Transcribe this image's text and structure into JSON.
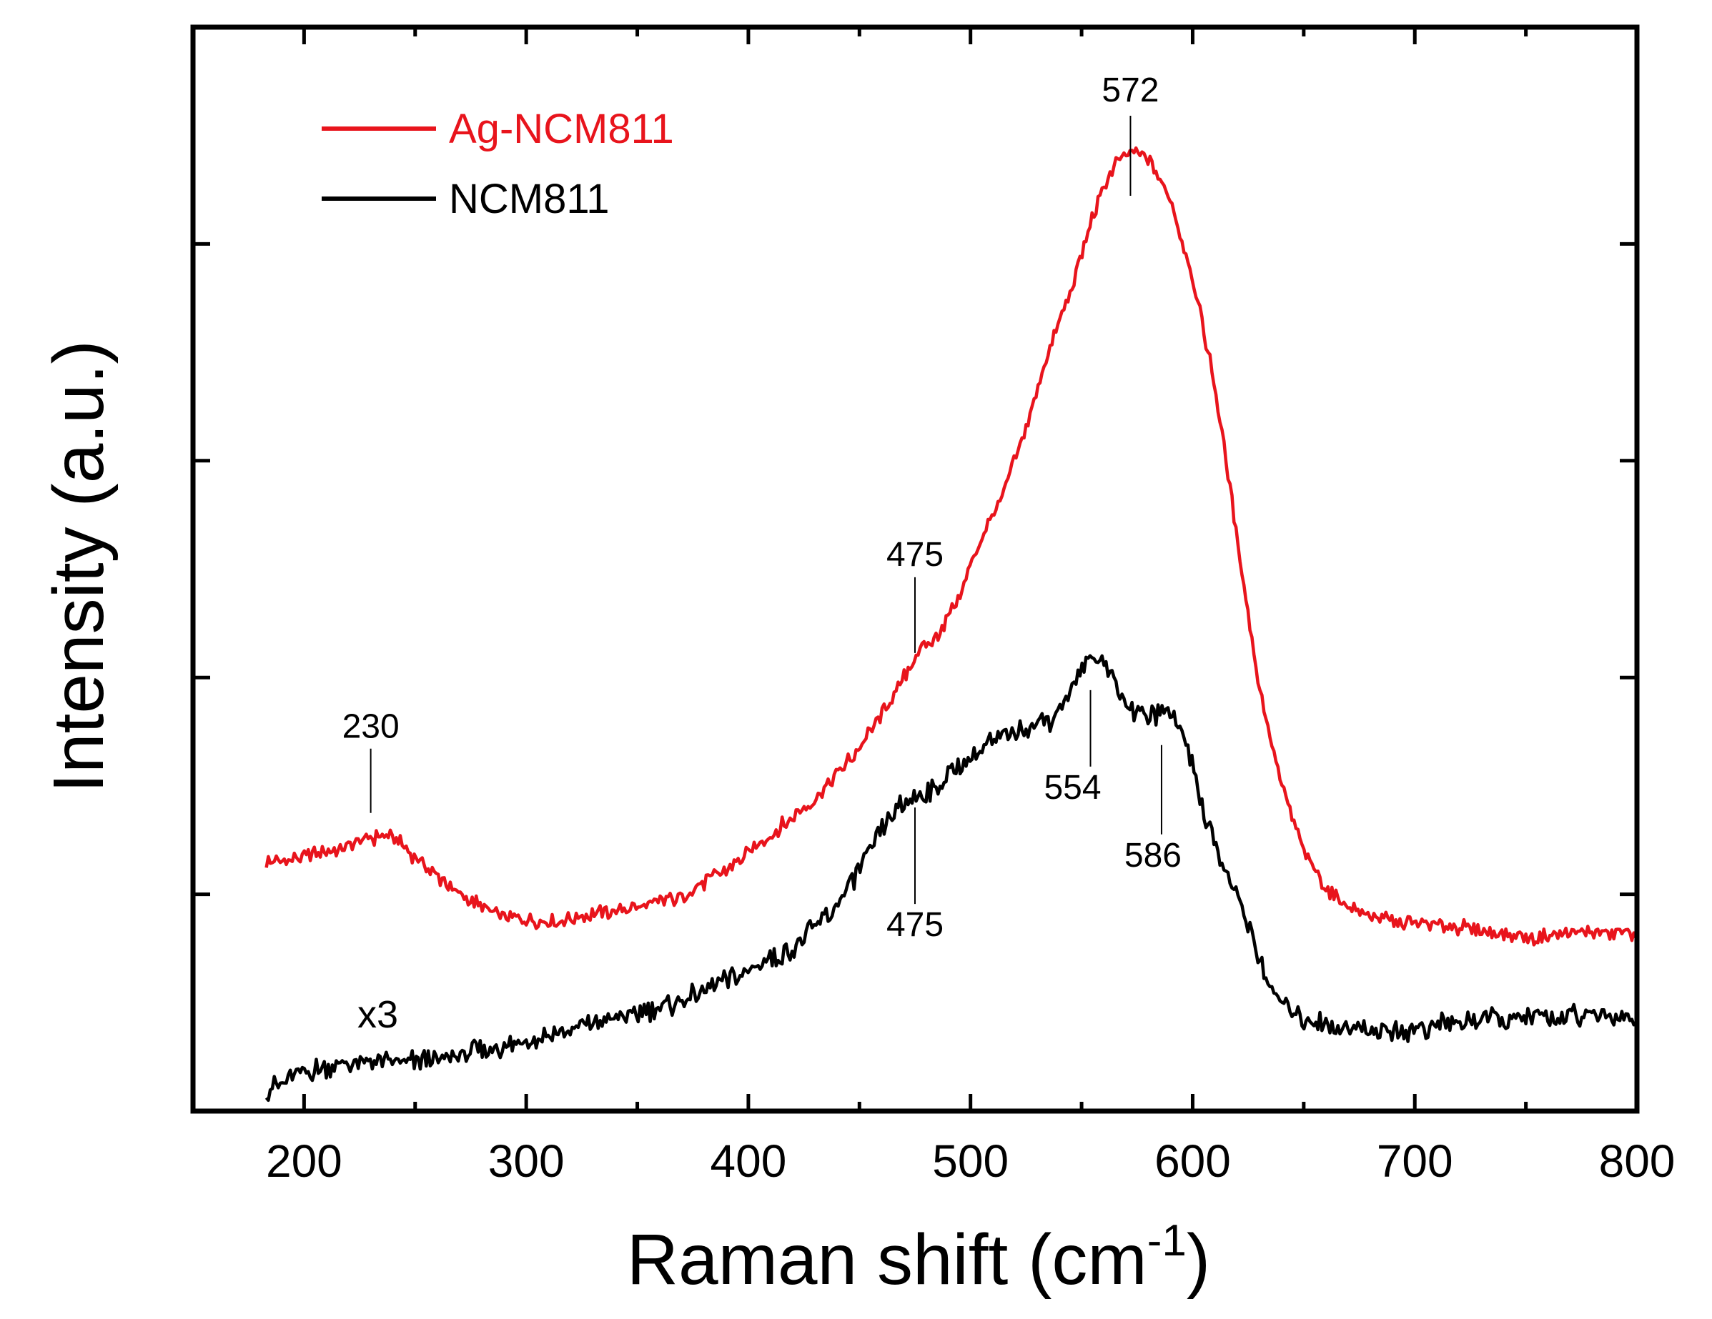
{
  "chart_data": {
    "type": "line",
    "title": "",
    "xlabel": "Raman shift (cm",
    "xlabel_superscript": "-1",
    "xlabel_close": ")",
    "ylabel": "Intensity (a.u.)",
    "xlim": [
      150,
      800
    ],
    "ylim": [
      0,
      100
    ],
    "x_ticks": [
      200,
      300,
      400,
      500,
      600,
      700,
      800
    ],
    "y_ticks_show_labels": false,
    "grid": false,
    "legend_position": "top-left",
    "series": [
      {
        "name": "Ag-NCM811",
        "color": "#e8141c",
        "points": [
          [
            183,
            23
          ],
          [
            200,
            23.5
          ],
          [
            215,
            24.2
          ],
          [
            230,
            25.2
          ],
          [
            240,
            25.3
          ],
          [
            255,
            22.5
          ],
          [
            270,
            20
          ],
          [
            290,
            17.8
          ],
          [
            310,
            17.3
          ],
          [
            330,
            18.2
          ],
          [
            350,
            18.8
          ],
          [
            370,
            19.8
          ],
          [
            390,
            22.3
          ],
          [
            410,
            25.5
          ],
          [
            430,
            28.8
          ],
          [
            450,
            33.5
          ],
          [
            465,
            38
          ],
          [
            475,
            42
          ],
          [
            485,
            43.8
          ],
          [
            495,
            47.5
          ],
          [
            505,
            53
          ],
          [
            515,
            57
          ],
          [
            525,
            63
          ],
          [
            535,
            70
          ],
          [
            545,
            75.5
          ],
          [
            555,
            82.5
          ],
          [
            565,
            87.5
          ],
          [
            572,
            88.4
          ],
          [
            580,
            88
          ],
          [
            590,
            84
          ],
          [
            600,
            77
          ],
          [
            610,
            67
          ],
          [
            620,
            53
          ],
          [
            630,
            39
          ],
          [
            640,
            30
          ],
          [
            650,
            24
          ],
          [
            660,
            20.5
          ],
          [
            670,
            18.8
          ],
          [
            690,
            17.5
          ],
          [
            720,
            17
          ],
          [
            750,
            16
          ],
          [
            775,
            16.5
          ],
          [
            800,
            16.5
          ]
        ]
      },
      {
        "name": "NCM811",
        "color": "#000000",
        "points": [
          [
            183,
            2
          ],
          [
            200,
            3.5
          ],
          [
            220,
            4.5
          ],
          [
            240,
            4.5
          ],
          [
            260,
            4.8
          ],
          [
            280,
            5.5
          ],
          [
            300,
            6.5
          ],
          [
            320,
            7.5
          ],
          [
            340,
            8.5
          ],
          [
            360,
            9.5
          ],
          [
            380,
            11
          ],
          [
            400,
            13
          ],
          [
            420,
            15
          ],
          [
            440,
            19
          ],
          [
            455,
            24
          ],
          [
            465,
            27.5
          ],
          [
            475,
            29
          ],
          [
            485,
            30
          ],
          [
            495,
            32
          ],
          [
            505,
            33.5
          ],
          [
            515,
            34.5
          ],
          [
            525,
            35.5
          ],
          [
            535,
            36
          ],
          [
            545,
            38.5
          ],
          [
            554,
            42
          ],
          [
            560,
            41.5
          ],
          [
            570,
            37.5
          ],
          [
            580,
            36.4
          ],
          [
            590,
            37
          ],
          [
            597,
            34.5
          ],
          [
            605,
            27.5
          ],
          [
            615,
            22
          ],
          [
            625,
            17.5
          ],
          [
            635,
            11
          ],
          [
            650,
            8.5
          ],
          [
            670,
            7.5
          ],
          [
            700,
            7.5
          ],
          [
            730,
            8.5
          ],
          [
            760,
            8.5
          ],
          [
            780,
            9
          ],
          [
            800,
            8.5
          ]
        ]
      }
    ],
    "annotations": [
      {
        "label": "572",
        "x": 572,
        "y": 88.4
      },
      {
        "label": "475",
        "x": 475,
        "y": 42
      },
      {
        "label": "230",
        "x": 230,
        "y": 25.2
      },
      {
        "label": "554",
        "x": 554,
        "y": 42
      },
      {
        "label": "586",
        "x": 586,
        "y": 36.4
      },
      {
        "label": "475",
        "x": 475,
        "y": 29
      }
    ],
    "scale_note": "x3"
  }
}
